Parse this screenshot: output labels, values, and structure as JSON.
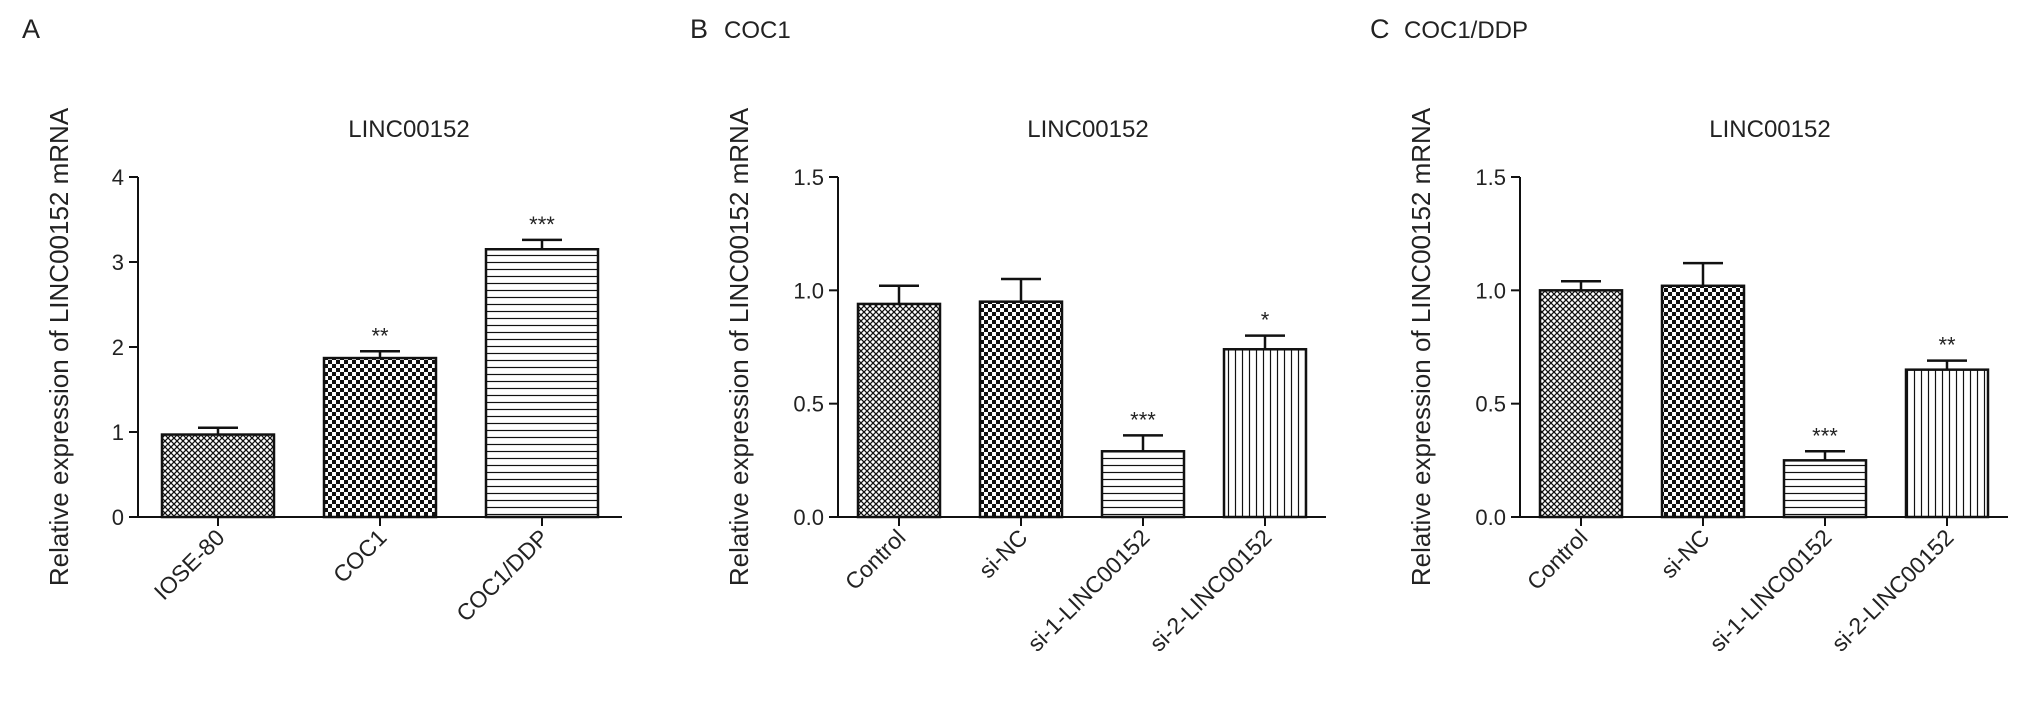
{
  "panels": [
    {
      "letter": "A",
      "subtitle": ""
    },
    {
      "letter": "B",
      "subtitle": "COC1"
    },
    {
      "letter": "C",
      "subtitle": "COC1/DDP"
    }
  ],
  "chart_data": [
    {
      "type": "bar",
      "title": "LINC00152",
      "ylabel": "Relative expression of LINC00152 mRNA",
      "xlabel": "",
      "ylim": [
        0,
        4
      ],
      "yticks": [
        0,
        1,
        2,
        3,
        4
      ],
      "ytick_labels": [
        "0",
        "1",
        "2",
        "3",
        "4"
      ],
      "categories": [
        "IOSE-80",
        "COC1",
        "COC1/DDP"
      ],
      "values": [
        0.97,
        1.87,
        3.15
      ],
      "errors": [
        0.08,
        0.08,
        0.11
      ],
      "significance": [
        "",
        "**",
        "***"
      ],
      "patterns": [
        "crosshatch",
        "checker",
        "hlines"
      ]
    },
    {
      "type": "bar",
      "title": "LINC00152",
      "ylabel": "Relative expression of LINC00152 mRNA",
      "xlabel": "",
      "ylim": [
        0,
        1.5
      ],
      "yticks": [
        0,
        0.5,
        1.0,
        1.5
      ],
      "ytick_labels": [
        "0.0",
        "0.5",
        "1.0",
        "1.5"
      ],
      "categories": [
        "Control",
        "si-NC",
        "si-1-LINC00152",
        "si-2-LINC00152"
      ],
      "values": [
        0.94,
        0.95,
        0.29,
        0.74
      ],
      "errors": [
        0.08,
        0.1,
        0.07,
        0.06
      ],
      "significance": [
        "",
        "",
        "***",
        "*"
      ],
      "patterns": [
        "crosshatch",
        "checker",
        "hlines",
        "vlines"
      ]
    },
    {
      "type": "bar",
      "title": "LINC00152",
      "ylabel": "Relative expression of LINC00152 mRNA",
      "xlabel": "",
      "ylim": [
        0,
        1.5
      ],
      "yticks": [
        0,
        0.5,
        1.0,
        1.5
      ],
      "ytick_labels": [
        "0.0",
        "0.5",
        "1.0",
        "1.5"
      ],
      "categories": [
        "Control",
        "si-NC",
        "si-1-LINC00152",
        "si-2-LINC00152"
      ],
      "values": [
        1.0,
        1.02,
        0.25,
        0.65
      ],
      "errors": [
        0.04,
        0.1,
        0.04,
        0.04
      ],
      "significance": [
        "",
        "",
        "***",
        "**"
      ],
      "patterns": [
        "crosshatch",
        "checker",
        "hlines",
        "vlines"
      ]
    }
  ]
}
